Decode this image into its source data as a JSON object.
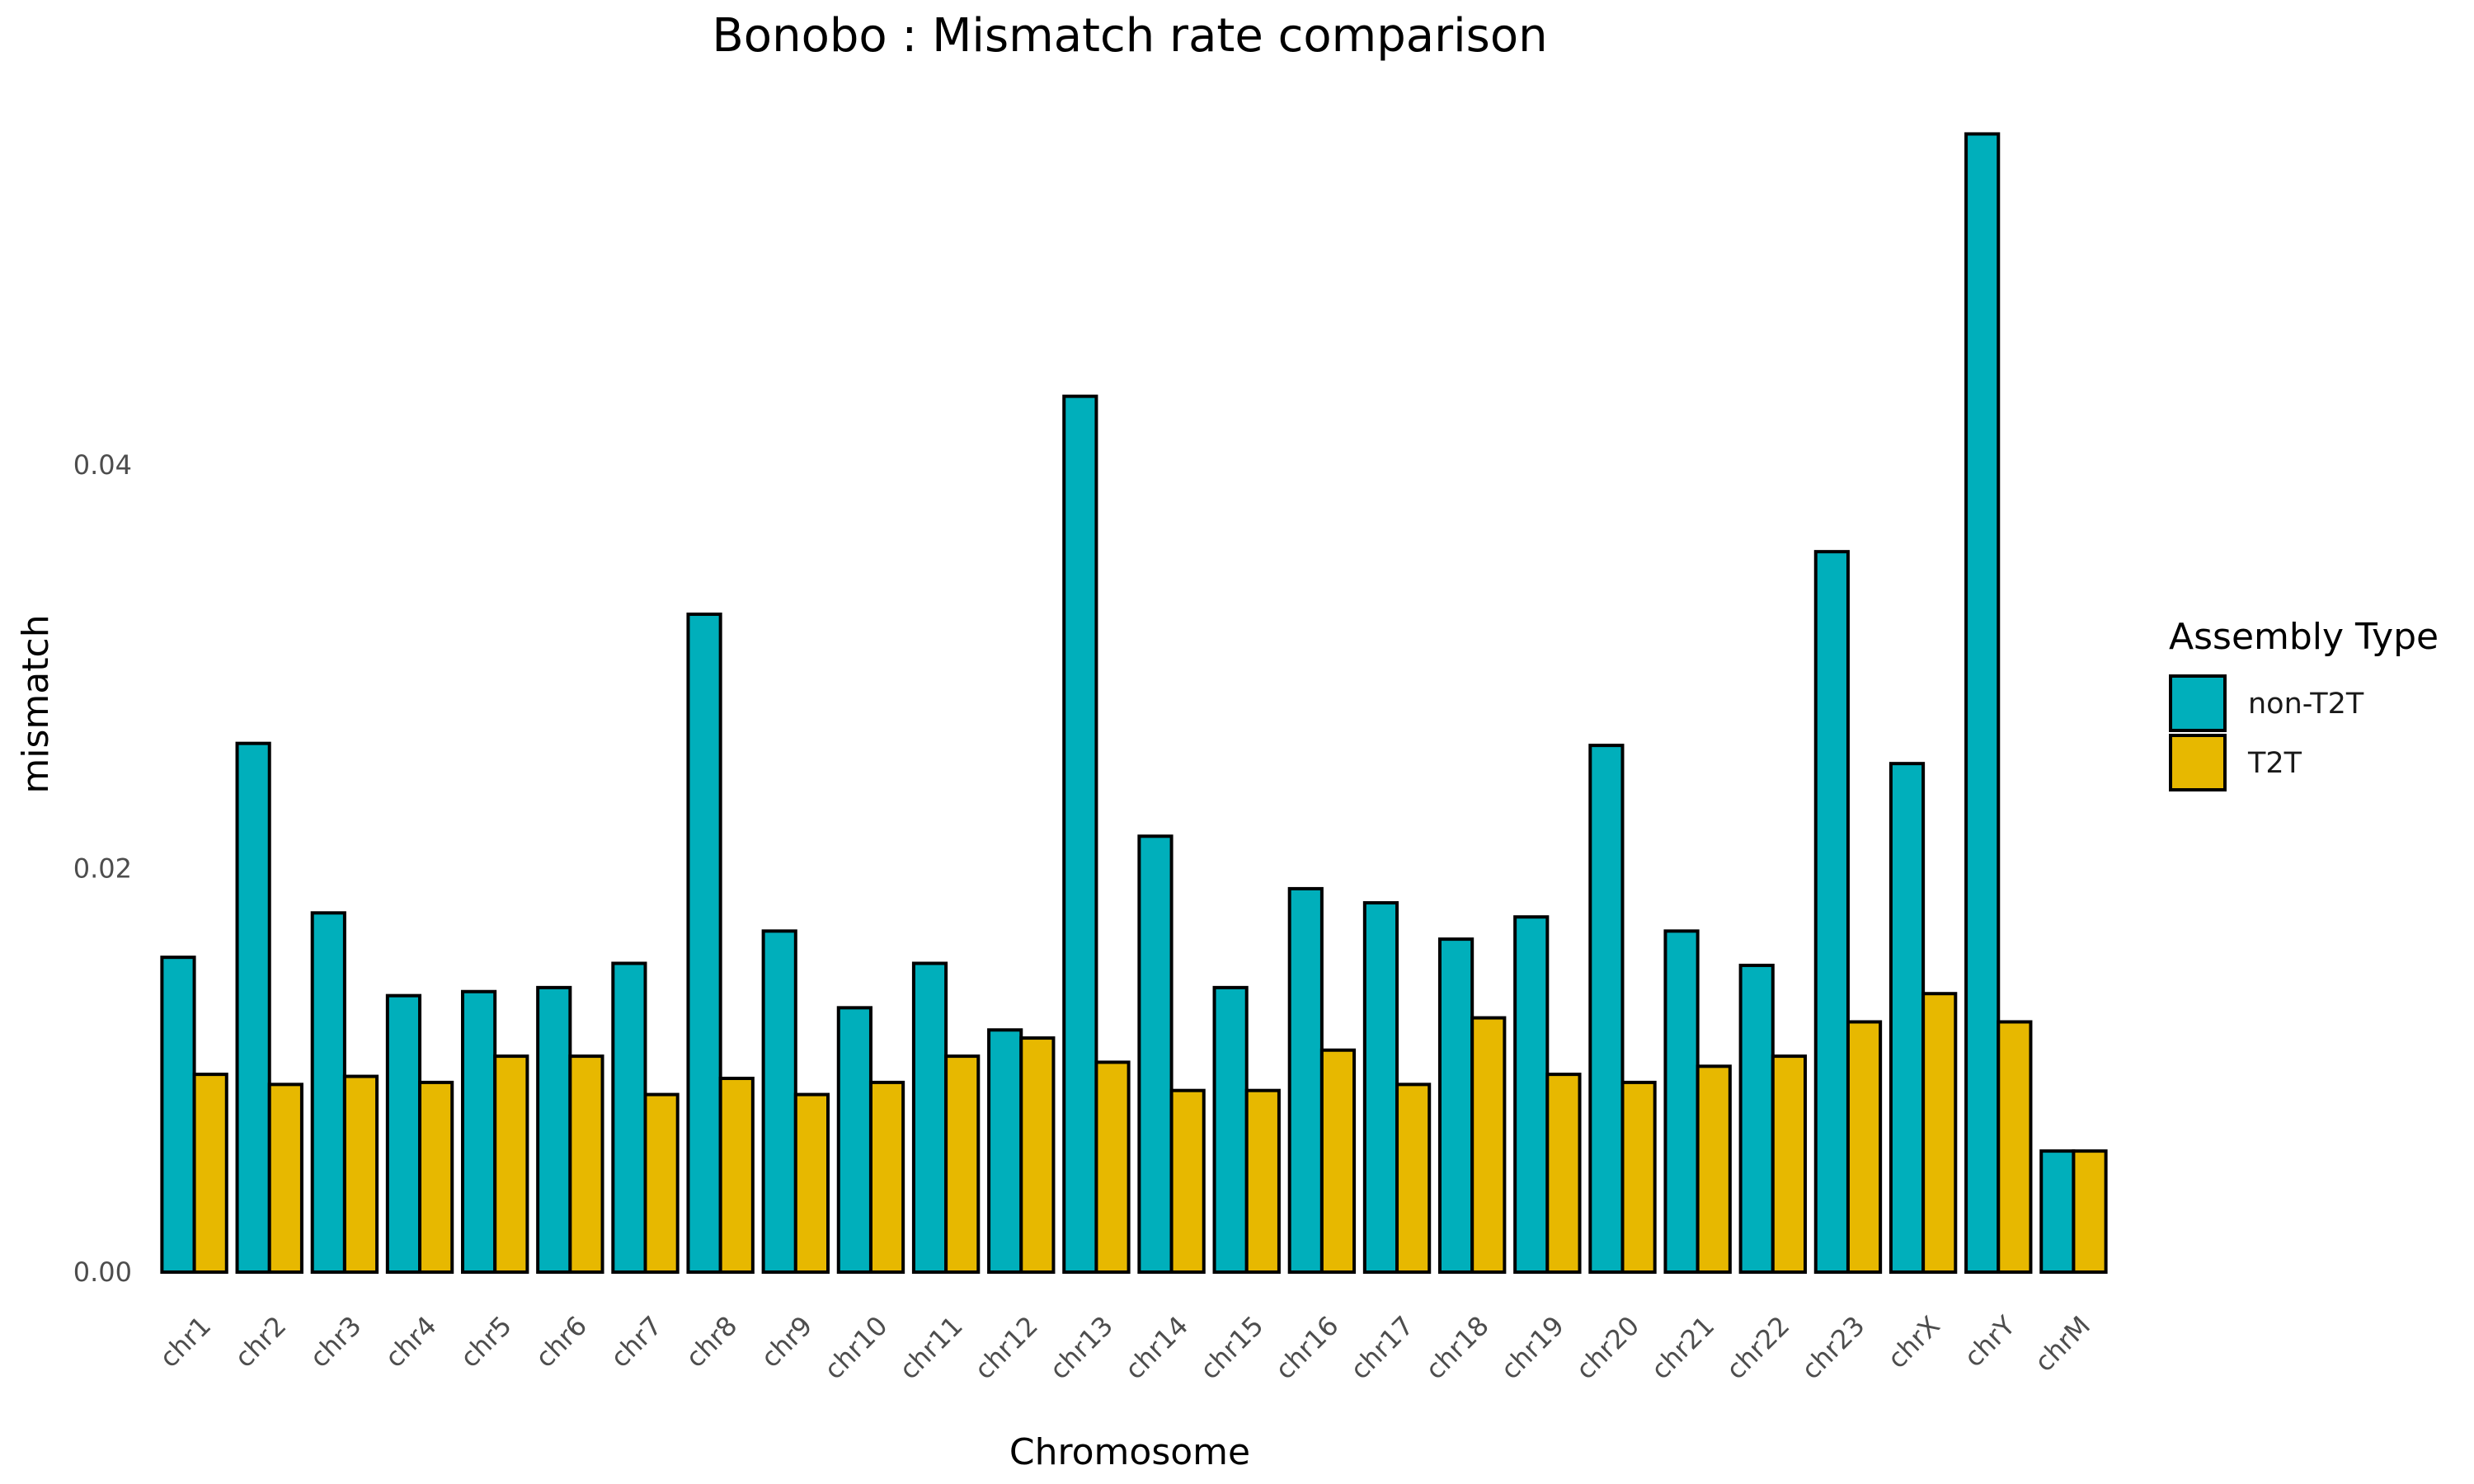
{
  "chart_data": {
    "type": "bar",
    "title": "Bonobo : Mismatch rate comparison",
    "xlabel": "Chromosome",
    "ylabel": "mismatch",
    "ylim": [
      0,
      0.0565
    ],
    "yticks": [
      "0.00",
      "0.02",
      "0.04"
    ],
    "ytick_values": [
      0.0,
      0.02,
      0.04
    ],
    "grid": false,
    "legend_position": "right",
    "legend_title": "Assembly Type",
    "categories": [
      "chr1",
      "chr2",
      "chr3",
      "chr4",
      "chr5",
      "chr6",
      "chr7",
      "chr8",
      "chr9",
      "chr10",
      "chr11",
      "chr12",
      "chr13",
      "chr14",
      "chr15",
      "chr16",
      "chr17",
      "chr18",
      "chr19",
      "chr20",
      "chr21",
      "chr22",
      "chr23",
      "chrX",
      "chrY",
      "chrM"
    ],
    "series": [
      {
        "name": "non-T2T",
        "color": "#00AFBB",
        "values": [
          0.0156,
          0.0262,
          0.0178,
          0.0137,
          0.0139,
          0.0141,
          0.0153,
          0.0326,
          0.0169,
          0.0131,
          0.0153,
          0.012,
          0.0434,
          0.0216,
          0.0141,
          0.019,
          0.0183,
          0.0165,
          0.0176,
          0.0261,
          0.0169,
          0.0152,
          0.0357,
          0.0252,
          0.0564,
          0.006
        ]
      },
      {
        "name": "T2T",
        "color": "#E7B800",
        "values": [
          0.0098,
          0.0093,
          0.0097,
          0.0094,
          0.0107,
          0.0107,
          0.0088,
          0.0096,
          0.0088,
          0.0094,
          0.0107,
          0.0116,
          0.0104,
          0.009,
          0.009,
          0.011,
          0.0093,
          0.0126,
          0.0098,
          0.0094,
          0.0102,
          0.0107,
          0.0124,
          0.0138,
          0.0124,
          0.006
        ]
      }
    ]
  }
}
